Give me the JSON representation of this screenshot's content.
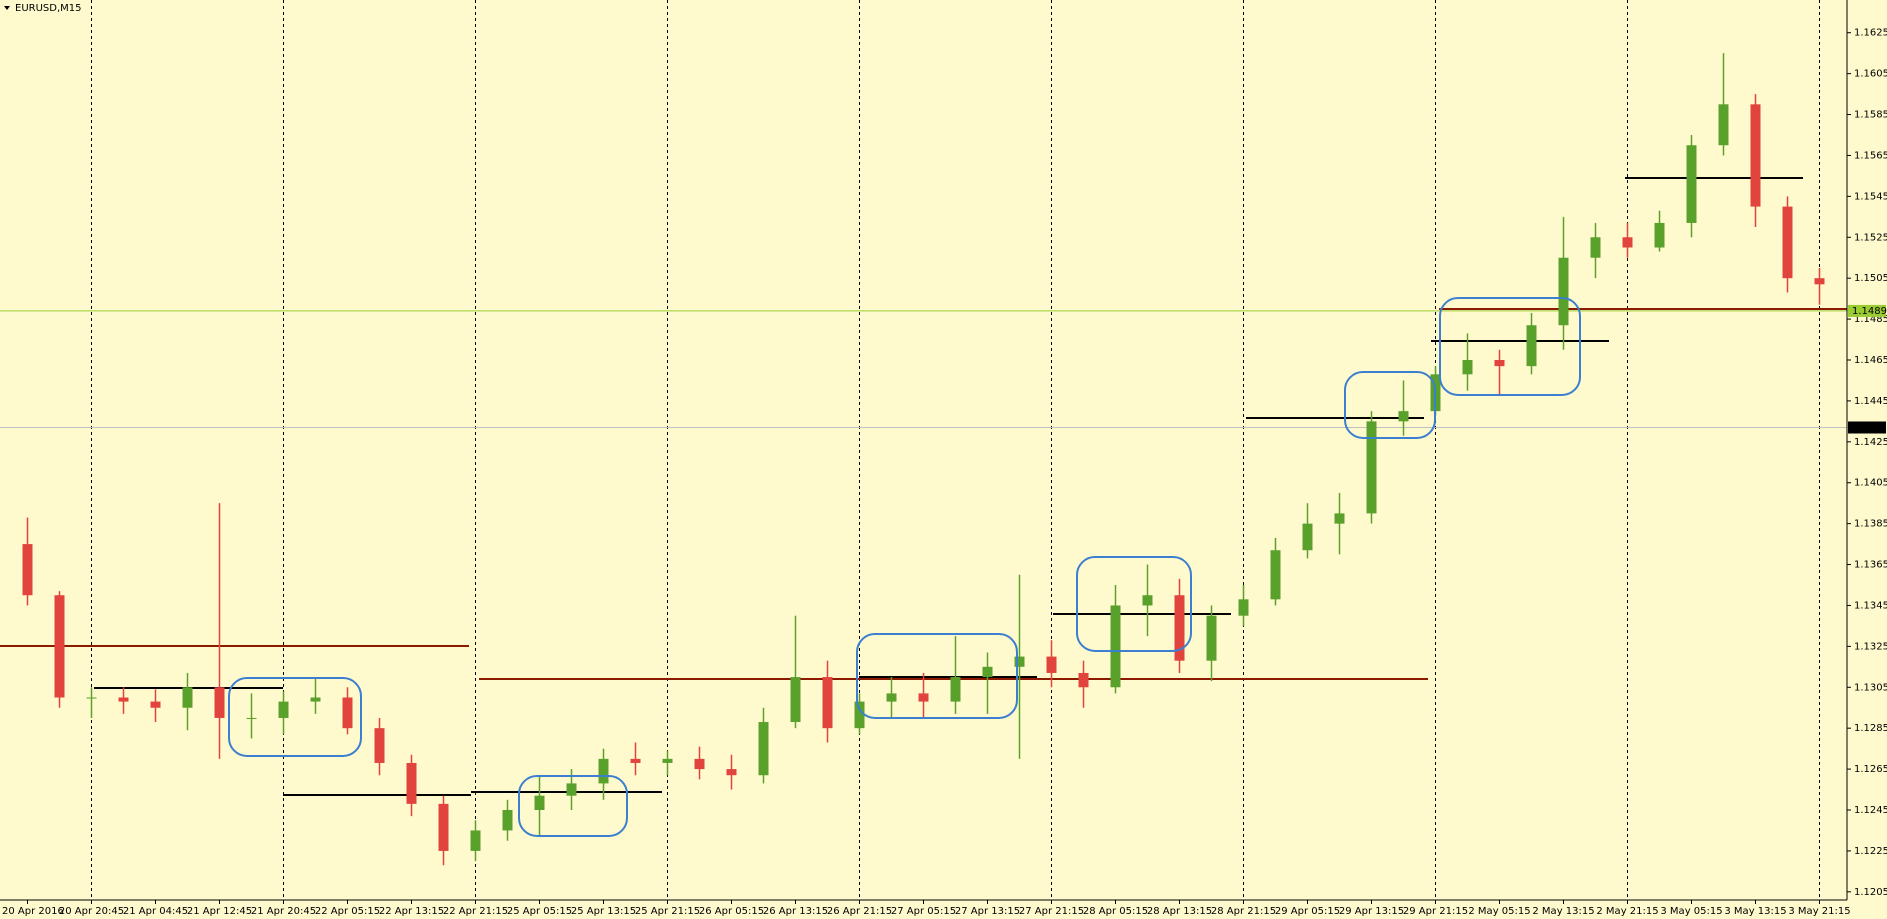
{
  "chart_data": {
    "type": "candlestick",
    "title": "EURUSD,M15",
    "up_color": "#5aa02c",
    "down_color": "#e0443c",
    "ylim": [
      1.1201,
      1.1641
    ],
    "yticks": [
      1.1205,
      1.1225,
      1.1245,
      1.1265,
      1.1285,
      1.1305,
      1.1325,
      1.1345,
      1.1365,
      1.1385,
      1.1405,
      1.1425,
      1.1445,
      1.1465,
      1.1485,
      1.1505,
      1.1525,
      1.1545,
      1.1565,
      1.1585,
      1.1605,
      1.1625
    ],
    "price_labels": [
      {
        "value": 1.1489,
        "line_color": "#9acd32",
        "box_color": "#9acd32",
        "text_color": "#ffffff"
      },
      {
        "value": 1.1432,
        "line_color": "#c0c0c0",
        "box_color": "#000000",
        "text_color": "#ffffff"
      }
    ],
    "categories": [
      "20 Apr 2016",
      null,
      "20 Apr 20:45",
      null,
      "21 Apr 04:45",
      null,
      "21 Apr 12:45",
      null,
      "21 Apr 20:45",
      null,
      "22 Apr 05:15",
      null,
      "22 Apr 13:15",
      null,
      "22 Apr 21:15",
      null,
      "25 Apr 05:15",
      null,
      "25 Apr 13:15",
      null,
      "25 Apr 21:15",
      null,
      "26 Apr 05:15",
      null,
      "26 Apr 13:15",
      null,
      "26 Apr 21:15",
      null,
      "27 Apr 05:15",
      null,
      "27 Apr 13:15",
      null,
      "27 Apr 21:15",
      null,
      "28 Apr 05:15",
      null,
      "28 Apr 13:15",
      null,
      "28 Apr 21:15",
      null,
      "29 Apr 05:15",
      null,
      "29 Apr 13:15",
      null,
      "29 Apr 21:15",
      null,
      "2 May 05:15",
      null,
      "2 May 13:15",
      null,
      "2 May 21:15",
      null,
      "3 May 05:15",
      null,
      "3 May 13:15",
      null,
      "3 May 21:15"
    ],
    "open": [
      1.1375,
      1.135,
      1.13,
      1.13,
      1.1298,
      1.1295,
      1.1305,
      1.129,
      1.129,
      1.1298,
      1.13,
      1.1285,
      1.1268,
      1.1248,
      1.1225,
      1.1235,
      1.1245,
      1.1252,
      1.1258,
      1.127,
      1.1268,
      1.127,
      1.1265,
      1.1262,
      1.1288,
      1.131,
      1.1285,
      1.1298,
      1.1302,
      1.1298,
      1.131,
      1.1315,
      1.132,
      1.1312,
      1.1305,
      1.1345,
      1.135,
      1.1318,
      1.134,
      1.1348,
      1.1372,
      1.1385,
      1.139,
      1.1435,
      1.144,
      1.1458,
      1.1465,
      1.1462,
      1.1482,
      1.1515,
      1.1525,
      1.152,
      1.1532,
      1.157,
      1.159,
      1.154,
      1.1505
    ],
    "high": [
      1.1388,
      1.1352,
      1.1305,
      1.1305,
      1.1304,
      1.1312,
      1.1395,
      1.1302,
      1.1303,
      1.131,
      1.1305,
      1.129,
      1.1272,
      1.1252,
      1.124,
      1.125,
      1.1262,
      1.1265,
      1.1275,
      1.1278,
      1.1274,
      1.1276,
      1.1272,
      1.1295,
      1.134,
      1.1318,
      1.1302,
      1.131,
      1.1312,
      1.133,
      1.1322,
      1.136,
      1.1328,
      1.1318,
      1.1355,
      1.1365,
      1.1358,
      1.1345,
      1.1355,
      1.1378,
      1.1395,
      1.14,
      1.144,
      1.1455,
      1.1462,
      1.1478,
      1.147,
      1.1488,
      1.1535,
      1.1532,
      1.1532,
      1.1538,
      1.1575,
      1.1615,
      1.1595,
      1.1545,
      1.151
    ],
    "low": [
      1.1345,
      1.1295,
      1.129,
      1.1292,
      1.1288,
      1.1284,
      1.127,
      1.128,
      1.1282,
      1.1292,
      1.1282,
      1.1262,
      1.1242,
      1.1218,
      1.122,
      1.123,
      1.1232,
      1.1245,
      1.125,
      1.1262,
      1.1262,
      1.126,
      1.1255,
      1.1258,
      1.1285,
      1.1278,
      1.1282,
      1.129,
      1.129,
      1.1292,
      1.1292,
      1.127,
      1.1305,
      1.1295,
      1.1302,
      1.133,
      1.1312,
      1.1308,
      1.1335,
      1.1345,
      1.1368,
      1.137,
      1.1385,
      1.1428,
      1.1438,
      1.145,
      1.1448,
      1.1458,
      1.147,
      1.1505,
      1.1515,
      1.1518,
      1.1525,
      1.1565,
      1.153,
      1.1498,
      1.1492
    ],
    "close": [
      1.135,
      1.13,
      1.13,
      1.1298,
      1.1295,
      1.1305,
      1.129,
      1.129,
      1.1298,
      1.13,
      1.1285,
      1.1268,
      1.1248,
      1.1225,
      1.1235,
      1.1245,
      1.1252,
      1.1258,
      1.127,
      1.1268,
      1.127,
      1.1265,
      1.1262,
      1.1288,
      1.131,
      1.1285,
      1.1298,
      1.1302,
      1.1298,
      1.131,
      1.1315,
      1.132,
      1.1312,
      1.1305,
      1.1345,
      1.135,
      1.1318,
      1.134,
      1.1348,
      1.1372,
      1.1385,
      1.139,
      1.1435,
      1.144,
      1.1458,
      1.1465,
      1.1462,
      1.1482,
      1.1515,
      1.1525,
      1.152,
      1.1532,
      1.157,
      1.159,
      1.154,
      1.1505,
      1.1502
    ]
  }
}
